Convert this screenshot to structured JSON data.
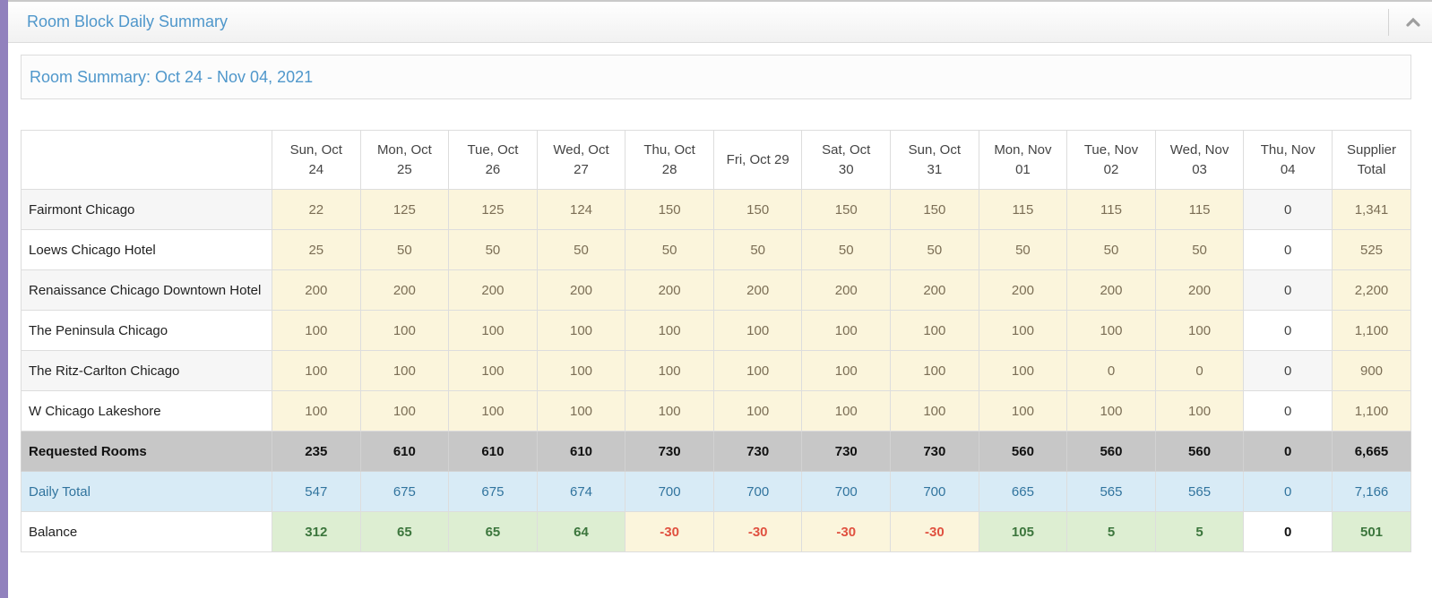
{
  "panel": {
    "title": "Room Block Daily Summary",
    "collapse_icon": "chevron-up-icon"
  },
  "summary": {
    "heading": "Room Summary: Oct 24 - Nov 04, 2021"
  },
  "table": {
    "columns": [
      "",
      "Sun, Oct 24",
      "Mon, Oct 25",
      "Tue, Oct 26",
      "Wed, Oct 27",
      "Thu, Oct 28",
      "Fri, Oct 29",
      "Sat, Oct 30",
      "Sun, Oct 31",
      "Mon, Nov 01",
      "Tue, Nov 02",
      "Wed, Nov 03",
      "Thu, Nov 04",
      "Supplier Total"
    ],
    "rows": [
      {
        "label": "Fairmont Chicago",
        "type": "hotel",
        "values": [
          "22",
          "125",
          "125",
          "124",
          "150",
          "150",
          "150",
          "150",
          "115",
          "115",
          "115",
          "0",
          "1,341"
        ]
      },
      {
        "label": "Loews Chicago Hotel",
        "type": "hotel",
        "values": [
          "25",
          "50",
          "50",
          "50",
          "50",
          "50",
          "50",
          "50",
          "50",
          "50",
          "50",
          "0",
          "525"
        ]
      },
      {
        "label": "Renaissance Chicago Downtown Hotel",
        "type": "hotel",
        "values": [
          "200",
          "200",
          "200",
          "200",
          "200",
          "200",
          "200",
          "200",
          "200",
          "200",
          "200",
          "0",
          "2,200"
        ]
      },
      {
        "label": "The Peninsula Chicago",
        "type": "hotel",
        "values": [
          "100",
          "100",
          "100",
          "100",
          "100",
          "100",
          "100",
          "100",
          "100",
          "100",
          "100",
          "0",
          "1,100"
        ]
      },
      {
        "label": "The Ritz-Carlton Chicago",
        "type": "hotel",
        "values": [
          "100",
          "100",
          "100",
          "100",
          "100",
          "100",
          "100",
          "100",
          "100",
          "0",
          "0",
          "0",
          "900"
        ]
      },
      {
        "label": "W Chicago Lakeshore",
        "type": "hotel",
        "values": [
          "100",
          "100",
          "100",
          "100",
          "100",
          "100",
          "100",
          "100",
          "100",
          "100",
          "100",
          "0",
          "1,100"
        ]
      },
      {
        "label": "Requested Rooms",
        "type": "requested",
        "values": [
          "235",
          "610",
          "610",
          "610",
          "730",
          "730",
          "730",
          "730",
          "560",
          "560",
          "560",
          "0",
          "6,665"
        ]
      },
      {
        "label": "Daily Total",
        "type": "daily",
        "values": [
          "547",
          "675",
          "675",
          "674",
          "700",
          "700",
          "700",
          "700",
          "665",
          "565",
          "565",
          "0",
          "7,166"
        ]
      },
      {
        "label": "Balance",
        "type": "balance",
        "values": [
          "312",
          "65",
          "65",
          "64",
          "-30",
          "-30",
          "-30",
          "-30",
          "105",
          "5",
          "5",
          "0",
          "501"
        ]
      }
    ]
  },
  "colors": {
    "accent-purple": "#9181bd",
    "title-blue": "#4f97cb",
    "cream-bg": "#fbf5dc",
    "cream-text": "#7b6e55",
    "gray-row-bg": "#c7c7c7",
    "blue-row-bg": "#d8ebf6",
    "blue-row-text": "#31749e",
    "green-bg": "#ddeed2",
    "green-text": "#3c763d",
    "red-text": "#e05140"
  }
}
